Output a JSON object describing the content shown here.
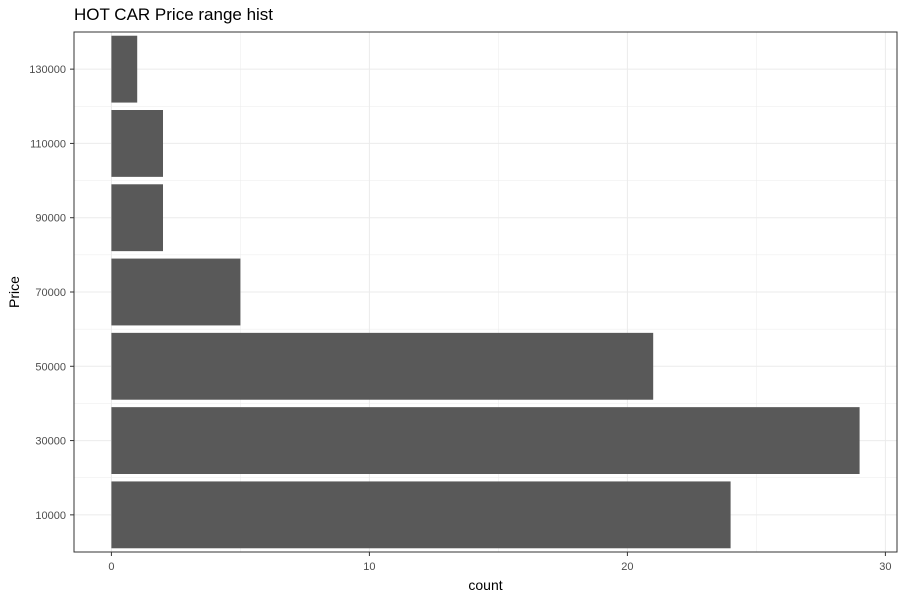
{
  "chart_data": {
    "type": "bar",
    "orientation": "horizontal",
    "title": "HOT CAR Price range hist",
    "xlabel": "count",
    "ylabel": "Price",
    "categories": [
      "10000",
      "30000",
      "50000",
      "70000",
      "90000",
      "110000",
      "130000"
    ],
    "values": [
      24,
      29,
      21,
      5,
      2,
      2,
      1
    ],
    "xlim": [
      -1.45,
      30.45
    ],
    "ylim": [
      0,
      140000
    ],
    "x_ticks": [
      0,
      10,
      20,
      30
    ],
    "y_ticks": [
      10000,
      30000,
      50000,
      70000,
      90000,
      110000,
      130000
    ],
    "grid": true,
    "bar_color": "#595959",
    "grid_color": "#ebebeb",
    "panel_border_color": "#333333",
    "tick_label_color": "#4d4d4d"
  }
}
